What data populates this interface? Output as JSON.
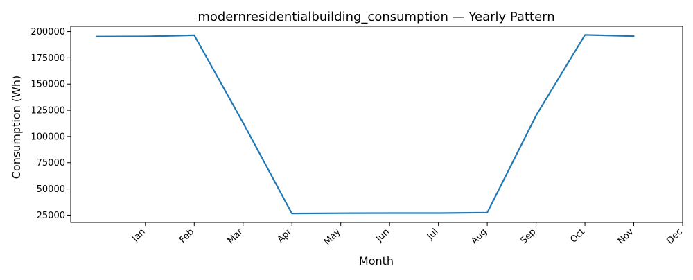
{
  "chart_data": {
    "type": "line",
    "title": "modernresidentialbuilding_consumption — Yearly Pattern",
    "xlabel": "Month",
    "ylabel": "Consumption (Wh)",
    "x_ticks": [
      "Jan",
      "Feb",
      "Mar",
      "Apr",
      "May",
      "Jun",
      "Jul",
      "Aug",
      "Sep",
      "Oct",
      "Nov",
      "Dec"
    ],
    "x_tick_positions": [
      2,
      3,
      4,
      5,
      6,
      7,
      8,
      9,
      10,
      11,
      12,
      13
    ],
    "xlim": [
      0.47,
      13
    ],
    "ylim": [
      18000,
      205000
    ],
    "y_ticks": [
      25000,
      50000,
      75000,
      100000,
      125000,
      150000,
      175000,
      200000
    ],
    "grid": false,
    "color": "#1f77b4",
    "series": [
      {
        "x": [
          1,
          2,
          3,
          4,
          5,
          6,
          7,
          8,
          9,
          10,
          11,
          12
        ],
        "values": [
          195300,
          195400,
          196500,
          113000,
          26500,
          26800,
          26900,
          26900,
          27400,
          120000,
          196800,
          195700
        ]
      }
    ]
  }
}
